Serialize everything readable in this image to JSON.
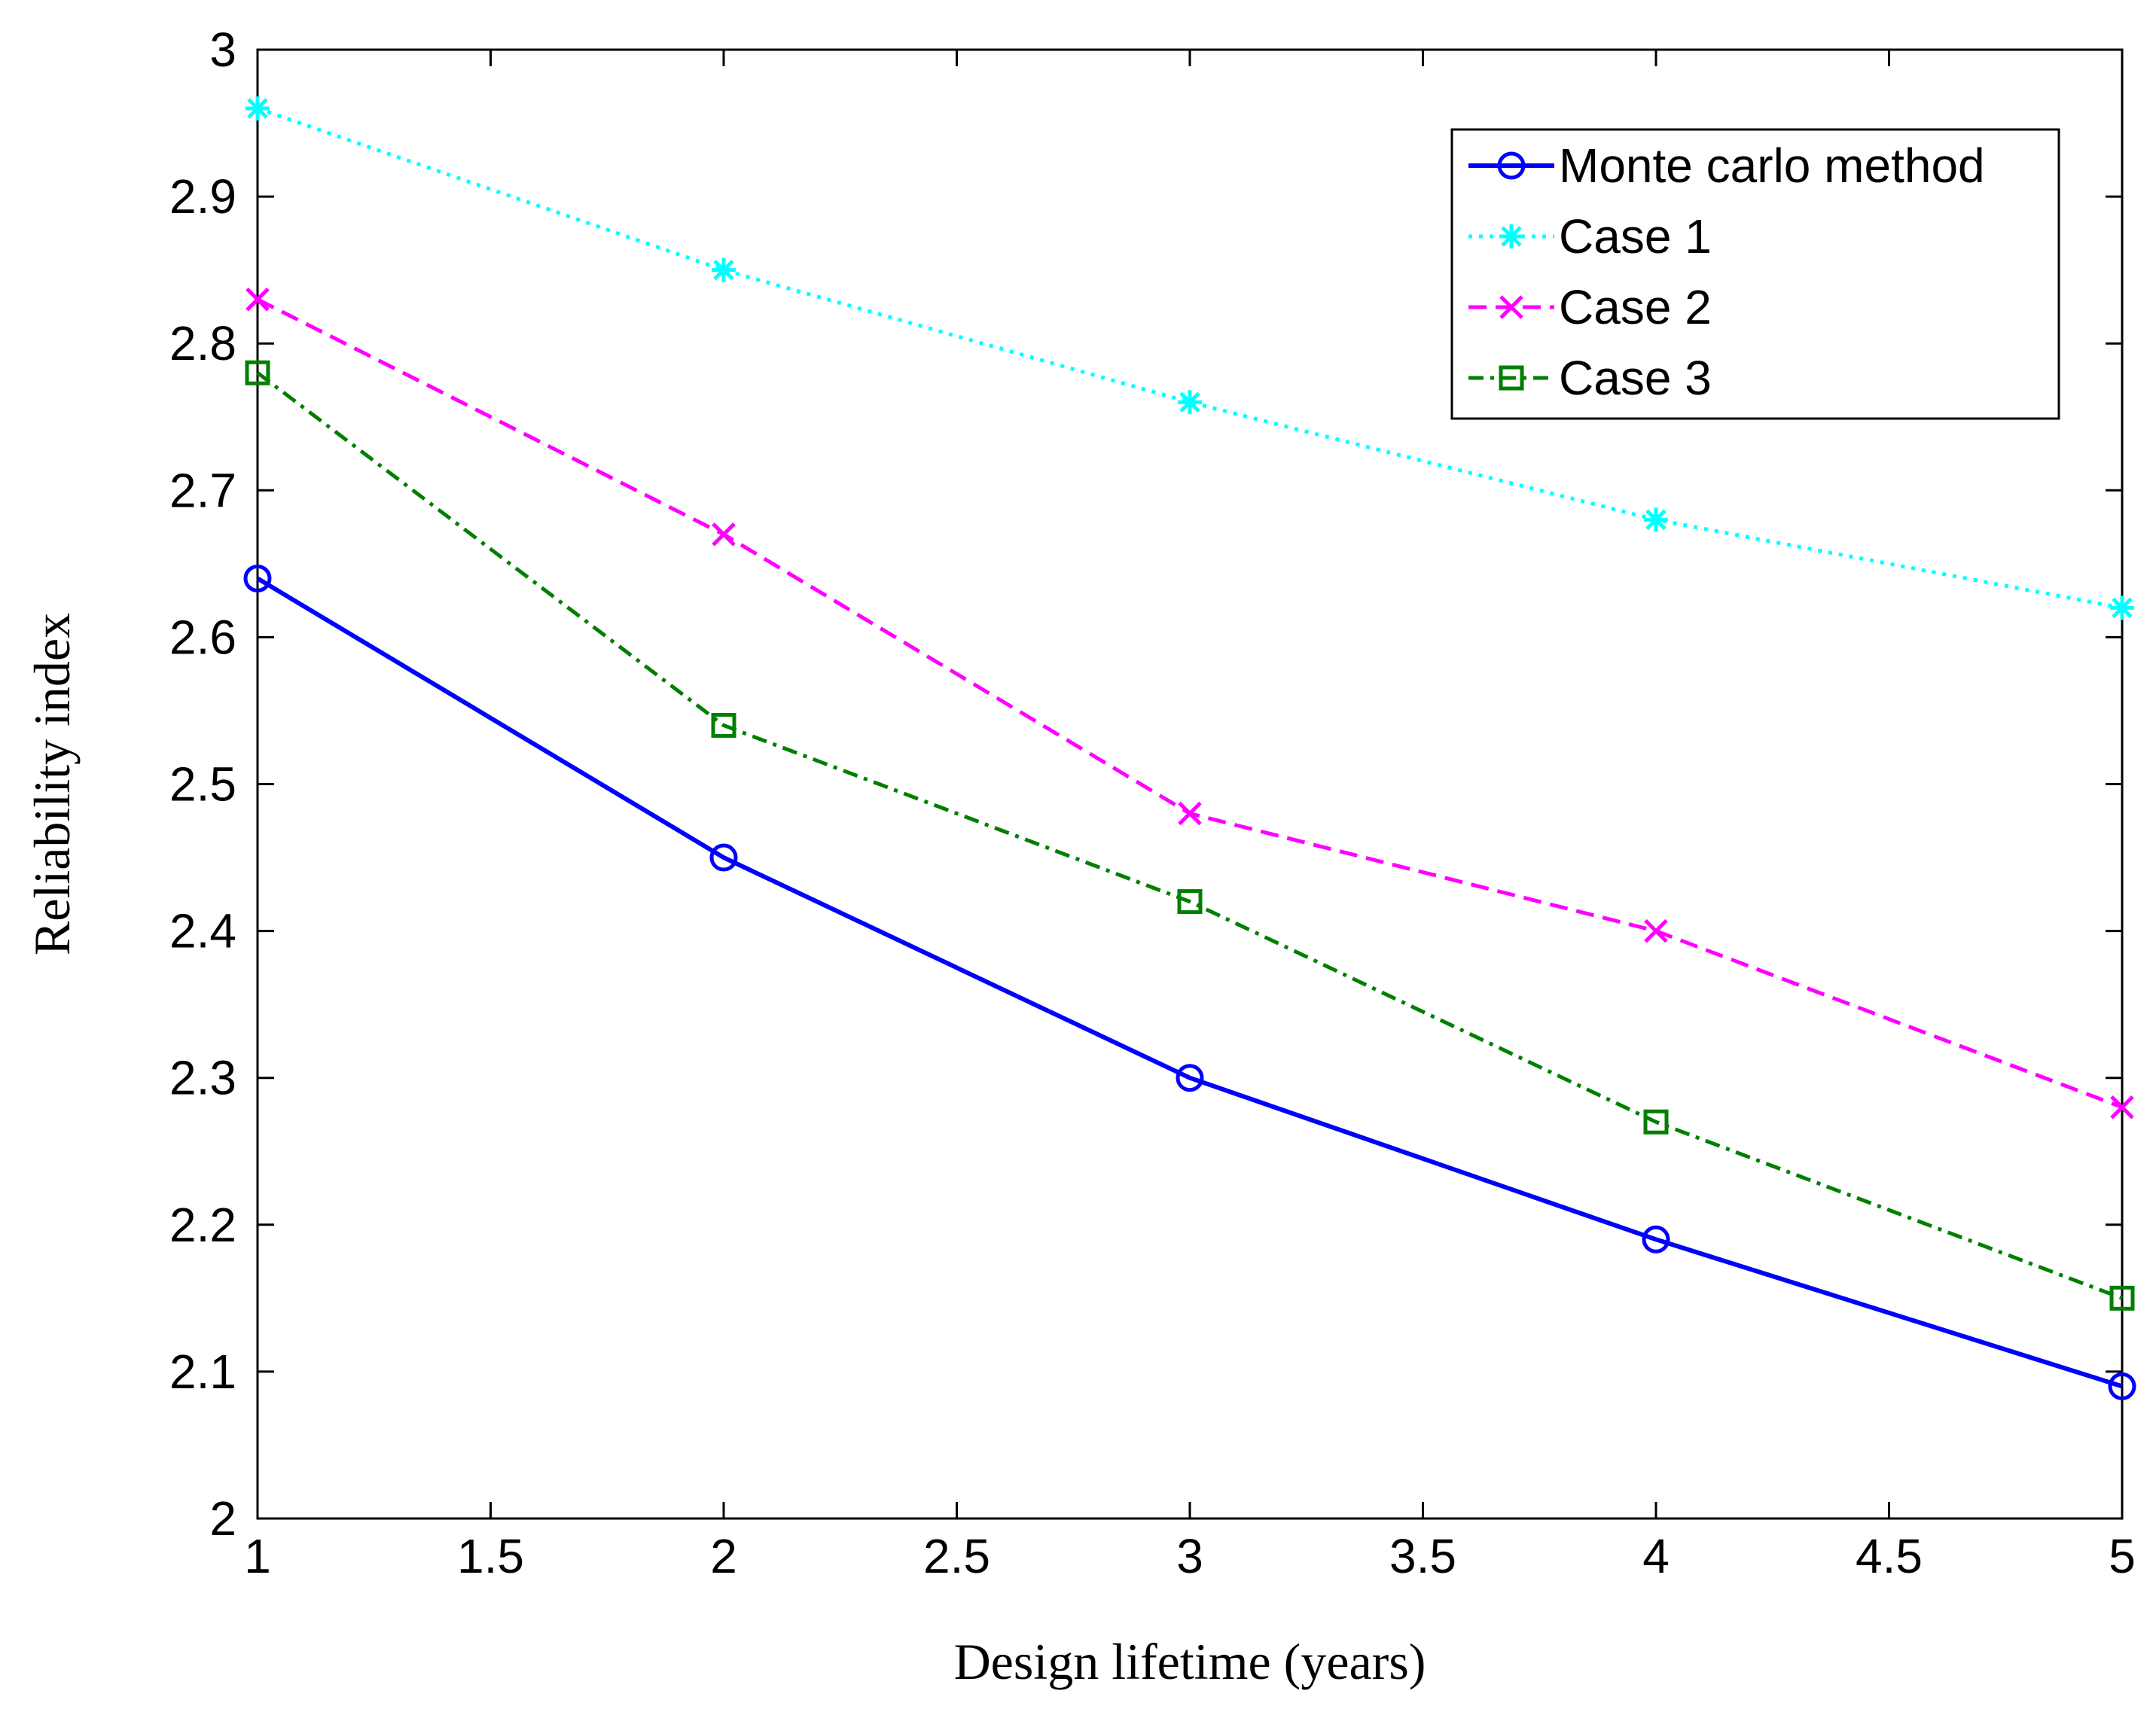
{
  "chart_data": {
    "type": "line",
    "title": "",
    "xlabel": "Design lifetime (years)",
    "ylabel": "Reliability index",
    "xlim": [
      1,
      5
    ],
    "ylim": [
      2,
      3
    ],
    "xticks": [
      1,
      1.5,
      2,
      2.5,
      3,
      3.5,
      4,
      4.5,
      5
    ],
    "yticks": [
      2,
      2.1,
      2.2,
      2.3,
      2.4,
      2.5,
      2.6,
      2.7,
      2.8,
      2.9,
      3
    ],
    "xtick_labels": [
      "1",
      "1.5",
      "2",
      "2.5",
      "3",
      "3.5",
      "4",
      "4.5",
      "5"
    ],
    "ytick_labels": [
      "2",
      "2.1",
      "2.2",
      "2.3",
      "2.4",
      "2.5",
      "2.6",
      "2.7",
      "2.8",
      "2.9",
      "3"
    ],
    "grid": false,
    "legend_position": "top-right",
    "x": [
      1,
      2,
      3,
      4,
      5
    ],
    "series": [
      {
        "name": "Monte carlo method",
        "values": [
          2.64,
          2.45,
          2.3,
          2.19,
          2.09
        ],
        "color": "#0000ff",
        "style": "solid",
        "marker": "circle"
      },
      {
        "name": "Case 1",
        "values": [
          2.96,
          2.85,
          2.76,
          2.68,
          2.62
        ],
        "color": "#00ffff",
        "style": "dotted",
        "marker": "asterisk"
      },
      {
        "name": "Case 2",
        "values": [
          2.83,
          2.67,
          2.48,
          2.4,
          2.28
        ],
        "color": "#ff00ff",
        "style": "dashed",
        "marker": "x"
      },
      {
        "name": "Case 3",
        "values": [
          2.78,
          2.54,
          2.42,
          2.27,
          2.15
        ],
        "color": "#007f00",
        "style": "dashdot",
        "marker": "square"
      }
    ]
  }
}
